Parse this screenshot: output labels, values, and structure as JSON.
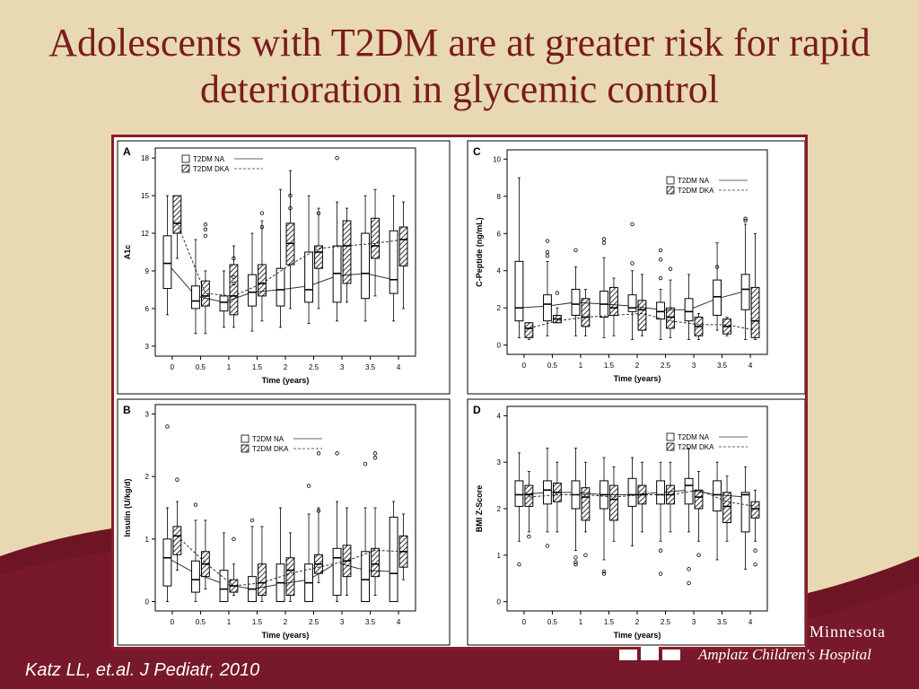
{
  "slide": {
    "title": "Adolescents with T2DM are at greater risk for rapid deterioration in glycemic control",
    "citation": "Katz LL, et.al. J Pediatr, 2010",
    "logo": {
      "name": "Minnesota",
      "subtitle": "Amplatz Children's Hospital"
    },
    "colors": {
      "title": "#7a1c1c",
      "frame": "#8b1a2b",
      "background": "#e8d9b3",
      "wave": "#6e1525"
    }
  },
  "chart_data": [
    {
      "panel": "A",
      "type": "boxplot",
      "xlabel": "Time (years)",
      "ylabel": "A1c",
      "x": [
        0,
        0.5,
        1,
        1.5,
        2,
        2.5,
        3,
        3.5,
        4
      ],
      "x_ticks": [
        "0",
        "0.5",
        "1",
        "1.5",
        "2",
        "2.5",
        "3",
        "3.5",
        "4"
      ],
      "y_ticks": [
        3,
        6,
        9,
        12,
        15,
        18
      ],
      "ylim": [
        2.2,
        18.8
      ],
      "legend": {
        "position": "top-left",
        "entries": [
          "T2DM NA",
          "T2DM DKA"
        ]
      },
      "series": [
        {
          "name": "T2DM NA",
          "style": "open",
          "boxes": [
            [
              5.5,
              7.6,
              9.6,
              11.8,
              15
            ],
            [
              4,
              6,
              6.6,
              7.8,
              11.5
            ],
            [
              4.5,
              5.8,
              6.5,
              7,
              9
            ],
            [
              4.2,
              6.2,
              7.3,
              8.7,
              12
            ],
            [
              4.5,
              6.2,
              7.5,
              9.2,
              15.5
            ],
            [
              4.8,
              6.5,
              7.5,
              10.5,
              15
            ],
            [
              5,
              6.5,
              8.8,
              11,
              14.5
            ],
            [
              5,
              6.8,
              8.8,
              12,
              15
            ],
            [
              5,
              7.2,
              8.3,
              12.2,
              15
            ]
          ],
          "outliers": [
            [],
            [],
            [],
            [],
            [],
            [],
            [
              18
            ],
            [],
            []
          ],
          "trend": [
            9.6,
            7,
            6.5,
            7.3,
            7.5,
            7.8,
            8.6,
            8.8,
            8.3
          ]
        },
        {
          "name": "T2DM DKA",
          "style": "hatched",
          "boxes": [
            [
              10,
              12,
              12.8,
              15,
              15
            ],
            [
              4,
              6.2,
              7,
              8.2,
              9
            ],
            [
              4.5,
              5.5,
              7,
              9.5,
              11
            ],
            [
              5,
              7,
              8,
              9.5,
              13
            ],
            [
              6,
              9.5,
              11.2,
              12.8,
              17
            ],
            [
              6,
              9.2,
              10.5,
              11,
              14
            ],
            [
              6.5,
              8,
              11,
              13,
              14
            ],
            [
              7,
              10,
              11,
              13.2,
              15.5
            ],
            [
              6,
              9.4,
              11.5,
              12.5,
              14.5
            ]
          ],
          "outliers": [
            [],
            [
              11.8,
              12.3,
              12.7
            ],
            [
              8,
              8.5,
              10
            ],
            [
              12.5,
              13.6
            ],
            [
              14,
              15
            ],
            [
              13.6
            ],
            [],
            [],
            []
          ],
          "trend": [
            12.8,
            7.2,
            7,
            8,
            9.5,
            10.8,
            11,
            11.2,
            11.5
          ]
        }
      ]
    },
    {
      "panel": "C",
      "type": "boxplot",
      "xlabel": "Time (years)",
      "ylabel": "C-Peptide (ng/mL)",
      "x": [
        0,
        0.5,
        1,
        1.5,
        2,
        2.5,
        3,
        3.5,
        4
      ],
      "x_ticks": [
        "0",
        "0.5",
        "1",
        "1.5",
        "2",
        "2.5",
        "3",
        "3.5",
        "4"
      ],
      "y_ticks": [
        0,
        2,
        4,
        6,
        8,
        10
      ],
      "ylim": [
        -0.5,
        10.5
      ],
      "legend": {
        "position": "top-right",
        "entries": [
          "T2DM NA",
          "T2DM DKA"
        ]
      },
      "series": [
        {
          "name": "T2DM NA",
          "style": "open",
          "boxes": [
            [
              0.4,
              1.3,
              2,
              4.5,
              9
            ],
            [
              0.5,
              1.3,
              2.2,
              2.7,
              4.5
            ],
            [
              0.5,
              1.6,
              2.2,
              3,
              4.2
            ],
            [
              0.4,
              1.5,
              2.2,
              2.9,
              4.7
            ],
            [
              0.3,
              1.8,
              2,
              2.7,
              4
            ],
            [
              0.3,
              1.4,
              1.8,
              2.3,
              3
            ],
            [
              0.3,
              1.3,
              1.8,
              2.5,
              3.8
            ],
            [
              0.8,
              1.6,
              2.6,
              3.5,
              5.5
            ],
            [
              0.3,
              1.9,
              3,
              3.8,
              6.5
            ]
          ],
          "outliers": [
            [],
            [
              4.8,
              5,
              5.6
            ],
            [
              5.1
            ],
            [
              5.5,
              5.7
            ],
            [
              4.4,
              6.5
            ],
            [
              3.6,
              4.6,
              5.1
            ],
            [],
            [
              4.2
            ],
            [
              6.7,
              6.8
            ]
          ],
          "trend": [
            2,
            2.1,
            2.3,
            2.2,
            2.1,
            1.9,
            1.9,
            2.5,
            2.9
          ]
        },
        {
          "name": "T2DM DKA",
          "style": "hatched",
          "boxes": [
            [
              0.3,
              0.4,
              0.9,
              1.2,
              1.2
            ],
            [
              1.2,
              1.2,
              1.4,
              1.6,
              2
            ],
            [
              0.5,
              1,
              1.5,
              2.5,
              3
            ],
            [
              0.5,
              1.6,
              2,
              3.1,
              3.6
            ],
            [
              0.5,
              0.8,
              1.9,
              2.4,
              3.8
            ],
            [
              0.4,
              0.9,
              1.5,
              2,
              3.5
            ],
            [
              0.3,
              0.5,
              1,
              1.5,
              1.7
            ],
            [
              0.5,
              0.6,
              1,
              1.4,
              1.5
            ],
            [
              0.3,
              0.4,
              1.3,
              3.1,
              6
            ]
          ],
          "outliers": [
            [],
            [
              2.8
            ],
            [],
            [],
            [],
            [
              4.1
            ],
            [],
            [],
            []
          ],
          "trend": [
            0.9,
            1.3,
            1.5,
            1.6,
            1.7,
            1.3,
            1.1,
            1.1,
            0.8
          ]
        }
      ]
    },
    {
      "panel": "B",
      "type": "boxplot",
      "xlabel": "Time (years)",
      "ylabel": "Insulin (U/kg/d)",
      "x": [
        0,
        0.5,
        1,
        1.5,
        2,
        2.5,
        3,
        3.5,
        4
      ],
      "x_ticks": [
        "0",
        "0.5",
        "1",
        "1.5",
        "2",
        "2.5",
        "3",
        "3.5",
        "4"
      ],
      "y_ticks": [
        0,
        1,
        2,
        3
      ],
      "ylim": [
        -0.15,
        3.15
      ],
      "legend": {
        "position": "top-center",
        "entries": [
          "T2DM NA",
          "T2DM DKA"
        ]
      },
      "series": [
        {
          "name": "T2DM NA",
          "style": "open",
          "boxes": [
            [
              0,
              0.25,
              0.7,
              1,
              1.5
            ],
            [
              0,
              0.15,
              0.35,
              0.65,
              1.3
            ],
            [
              0,
              0,
              0.2,
              0.5,
              1.1
            ],
            [
              0,
              0,
              0.2,
              0.4,
              1.2
            ],
            [
              0,
              0,
              0.3,
              0.6,
              1.5
            ],
            [
              0,
              0,
              0.3,
              0.6,
              1.4
            ],
            [
              0,
              0.1,
              0.7,
              0.85,
              1.6
            ],
            [
              0,
              0,
              0.35,
              0.8,
              1.5
            ],
            [
              0,
              0,
              0.45,
              1.35,
              1.6
            ]
          ],
          "outliers": [
            [
              2.8
            ],
            [
              1.55
            ],
            [],
            [
              1.3
            ],
            [],
            [
              1.85
            ],
            [
              2.37
            ],
            [
              2.2
            ],
            []
          ],
          "trend": [
            0.7,
            0.45,
            0.28,
            0.2,
            0.28,
            0.35,
            0.62,
            0.5,
            0.48
          ]
        },
        {
          "name": "T2DM DKA",
          "style": "hatched",
          "boxes": [
            [
              0.5,
              0.75,
              1.05,
              1.2,
              1.6
            ],
            [
              0.2,
              0.4,
              0.6,
              0.8,
              1.3
            ],
            [
              0.1,
              0.15,
              0.25,
              0.35,
              0.6
            ],
            [
              0,
              0.1,
              0.3,
              0.6,
              1.2
            ],
            [
              0,
              0.1,
              0.5,
              0.7,
              1.1
            ],
            [
              0.3,
              0.45,
              0.6,
              0.75,
              1.5
            ],
            [
              0.1,
              0.4,
              0.65,
              0.9,
              1.5
            ],
            [
              0.1,
              0.4,
              0.6,
              0.85,
              1.5
            ],
            [
              0.35,
              0.55,
              0.8,
              1.05,
              1.4
            ]
          ],
          "outliers": [
            [
              1.95
            ],
            [],
            [
              1
            ],
            [],
            [],
            [
              1.45,
              2.37
            ],
            [],
            [
              2.3,
              2.37
            ],
            []
          ],
          "trend": [
            1.05,
            0.62,
            0.25,
            0.3,
            0.45,
            0.55,
            0.65,
            0.82,
            0.8
          ]
        }
      ]
    },
    {
      "panel": "D",
      "type": "boxplot",
      "xlabel": "Time (years)",
      "ylabel": "BMI Z-Score",
      "x": [
        0,
        0.5,
        1,
        1.5,
        2,
        2.5,
        3,
        3.5,
        4
      ],
      "x_ticks": [
        "0",
        "0.5",
        "1",
        "1.5",
        "2",
        "2.5",
        "3",
        "3.5",
        "4"
      ],
      "y_ticks": [
        0,
        1,
        2,
        3,
        4
      ],
      "ylim": [
        -0.2,
        4.2
      ],
      "legend": {
        "position": "top-right",
        "entries": [
          "T2DM NA",
          "T2DM DKA"
        ]
      },
      "series": [
        {
          "name": "T2DM NA",
          "style": "open",
          "boxes": [
            [
              1.3,
              2.05,
              2.3,
              2.6,
              3.2
            ],
            [
              1.5,
              2.1,
              2.4,
              2.6,
              3.3
            ],
            [
              1.1,
              2,
              2.3,
              2.6,
              3.3
            ],
            [
              0.9,
              2,
              2.3,
              2.6,
              3.1
            ],
            [
              1.2,
              2.05,
              2.3,
              2.65,
              3.1
            ],
            [
              1.3,
              2.1,
              2.3,
              2.6,
              3
            ],
            [
              1.5,
              2.1,
              2.5,
              2.65,
              3.3
            ],
            [
              0.9,
              1.95,
              2.3,
              2.6,
              3
            ],
            [
              0.7,
              1.5,
              2.3,
              2.35,
              2.9
            ]
          ],
          "outliers": [
            [
              0.8
            ],
            [
              1.2
            ],
            [
              0.8,
              0.85,
              0.95
            ],
            [
              0.6,
              0.65
            ],
            [],
            [
              0.6,
              1.1
            ],
            [
              0.4,
              0.7
            ],
            [],
            []
          ],
          "trend": [
            2.3,
            2.35,
            2.35,
            2.3,
            2.3,
            2.35,
            2.4,
            2.3,
            2.25
          ]
        },
        {
          "name": "T2DM DKA",
          "style": "hatched",
          "boxes": [
            [
              1.5,
              2.05,
              2.3,
              2.5,
              2.8
            ],
            [
              1.5,
              2.15,
              2.35,
              2.55,
              3
            ],
            [
              1.5,
              1.75,
              2.25,
              2.45,
              3
            ],
            [
              1.3,
              1.75,
              2.2,
              2.5,
              2.9
            ],
            [
              1.5,
              2.1,
              2.3,
              2.5,
              3
            ],
            [
              1.5,
              2.1,
              2.3,
              2.5,
              3
            ],
            [
              1.3,
              2,
              2.25,
              2.4,
              2.8
            ],
            [
              1.3,
              1.7,
              2.05,
              2.35,
              2.7
            ],
            [
              1.3,
              1.8,
              2,
              2.15,
              2.4
            ]
          ],
          "outliers": [
            [
              1.4
            ],
            [],
            [
              1
            ],
            [],
            [],
            [],
            [
              1
            ],
            [],
            [
              0.8,
              1.1
            ]
          ],
          "trend": [
            2.25,
            2.3,
            2.3,
            2.25,
            2.3,
            2.3,
            2.4,
            2.15,
            2.05
          ]
        }
      ]
    }
  ]
}
